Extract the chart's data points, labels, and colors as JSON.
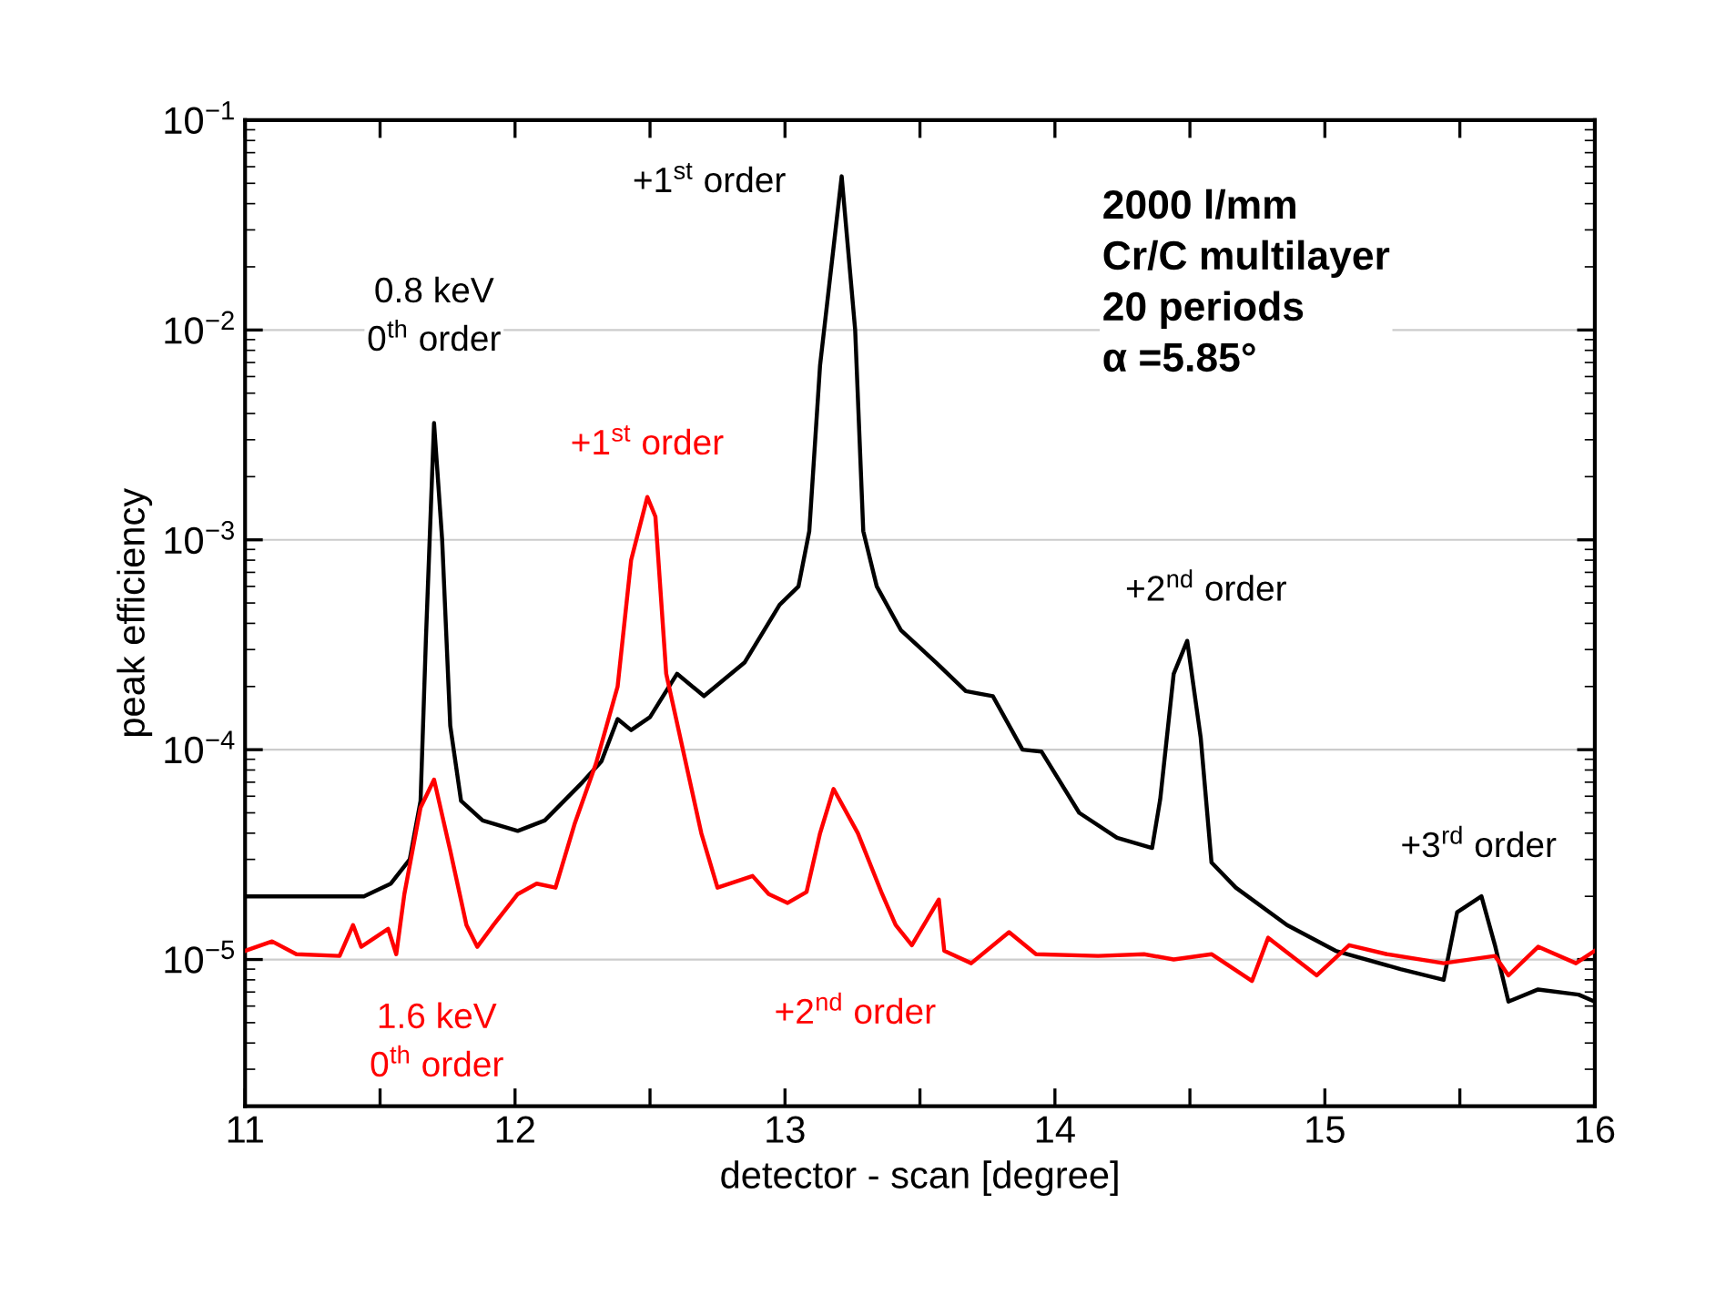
{
  "chart_data": {
    "type": "line",
    "xlabel": "detector - scan [degree]",
    "ylabel": "peak efficiency",
    "log": "y",
    "grid": "y",
    "marker": "none",
    "line_style": "solid",
    "xlim": [
      11,
      16
    ],
    "xticks": [
      11,
      {
        "value": 11.5,
        "label": null
      },
      12,
      {
        "value": 12.5,
        "label": null
      },
      13,
      {
        "value": 13.5,
        "label": null
      },
      14,
      {
        "value": 14.5,
        "label": null
      },
      15,
      {
        "value": 15.5,
        "label": null
      },
      16
    ],
    "ylim": [
      2e-06,
      0.1
    ],
    "yticks": [
      {
        "value": 1e-05,
        "label": "10$^{−5}$"
      },
      {
        "value": 0.0001,
        "label": "10$^{−4}$"
      },
      {
        "value": 0.001,
        "label": "10$^{−3}$"
      },
      {
        "value": 0.01,
        "label": "10$^{−2}$"
      },
      {
        "value": 0.1,
        "label": "10$^{−1}$"
      }
    ],
    "series": [
      {
        "color": "#000000",
        "x": [
          11.0,
          11.44,
          11.54,
          11.61,
          11.65,
          11.67,
          11.7,
          11.73,
          11.76,
          11.8,
          11.88,
          12.01,
          12.11,
          12.25,
          12.32,
          12.38,
          12.43,
          12.5,
          12.6,
          12.7,
          12.85,
          12.98,
          13.05,
          13.09,
          13.13,
          13.21,
          13.26,
          13.29,
          13.34,
          13.43,
          13.56,
          13.67,
          13.77,
          13.88,
          13.95,
          14.09,
          14.23,
          14.36,
          14.39,
          14.44,
          14.49,
          14.54,
          14.58,
          14.67,
          14.86,
          15.04,
          15.28,
          15.44,
          15.49,
          15.58,
          15.63,
          15.68,
          15.79,
          15.94,
          16.0
        ],
        "values": [
          2e-05,
          2e-05,
          2.3e-05,
          3e-05,
          5.7e-05,
          0.00034,
          0.0036,
          0.001,
          0.00013,
          5.7e-05,
          4.6e-05,
          4.1e-05,
          4.6e-05,
          7e-05,
          8.8e-05,
          0.00014,
          0.000124,
          0.000143,
          0.00023,
          0.00018,
          0.00026,
          0.00049,
          0.0006,
          0.0011,
          0.0068,
          0.054,
          0.01,
          0.0011,
          0.0006,
          0.00037,
          0.00026,
          0.00019,
          0.00018,
          0.0001,
          9.8e-05,
          5e-05,
          3.8e-05,
          3.4e-05,
          5.8e-05,
          0.00023,
          0.00033,
          0.000114,
          2.9e-05,
          2.2e-05,
          1.46e-05,
          1.1e-05,
          9e-06,
          8e-06,
          1.68e-05,
          2e-05,
          1.17e-05,
          6.3e-06,
          7.2e-06,
          6.8e-06,
          6.3e-06
        ]
      },
      {
        "color": "#ff0000",
        "x": [
          11.0,
          11.1,
          11.19,
          11.35,
          11.4,
          11.43,
          11.53,
          11.56,
          11.59,
          11.65,
          11.7,
          11.76,
          11.82,
          11.86,
          11.92,
          12.01,
          12.08,
          12.15,
          12.22,
          12.3,
          12.38,
          12.43,
          12.49,
          12.52,
          12.56,
          12.69,
          12.75,
          12.88,
          12.94,
          13.01,
          13.08,
          13.13,
          13.18,
          13.27,
          13.36,
          13.41,
          13.47,
          13.57,
          13.59,
          13.69,
          13.83,
          13.93,
          14.16,
          14.33,
          14.44,
          14.58,
          14.73,
          14.79,
          14.97,
          15.09,
          15.23,
          15.44,
          15.63,
          15.68,
          15.79,
          15.93,
          16.0
        ],
        "values": [
          1.1e-05,
          1.22e-05,
          1.06e-05,
          1.04e-05,
          1.46e-05,
          1.15e-05,
          1.4e-05,
          1.06e-05,
          2.05e-05,
          5.3e-05,
          7.2e-05,
          3.3e-05,
          1.46e-05,
          1.15e-05,
          1.46e-05,
          2.05e-05,
          2.3e-05,
          2.2e-05,
          4.4e-05,
          8.6e-05,
          0.0002,
          0.0008,
          0.0016,
          0.00129,
          0.00023,
          4e-05,
          2.2e-05,
          2.5e-05,
          2.05e-05,
          1.86e-05,
          2.1e-05,
          4e-05,
          6.5e-05,
          4e-05,
          2.05e-05,
          1.46e-05,
          1.17e-05,
          1.93e-05,
          1.1e-05,
          9.6e-06,
          1.35e-05,
          1.06e-05,
          1.04e-05,
          1.06e-05,
          1e-05,
          1.06e-05,
          7.9e-06,
          1.27e-05,
          8.4e-06,
          1.17e-05,
          1.06e-05,
          9.6e-06,
          1.04e-05,
          8.4e-06,
          1.15e-05,
          9.6e-06,
          1.1e-05
        ]
      }
    ],
    "annotations": [
      "0.8 keV\n0$^{th}$ order",
      "+1$^{st}$ order",
      "+2$^{nd}$ order",
      "+3$^{rd}$ order",
      "+1$^{st}$ order",
      "1.6 keV\n0$^{th}$ order",
      "+2$^{nd}$ order",
      "2000 l/mm\nCr/C multilayer\n20 periods\nα =5.85°"
    ]
  }
}
